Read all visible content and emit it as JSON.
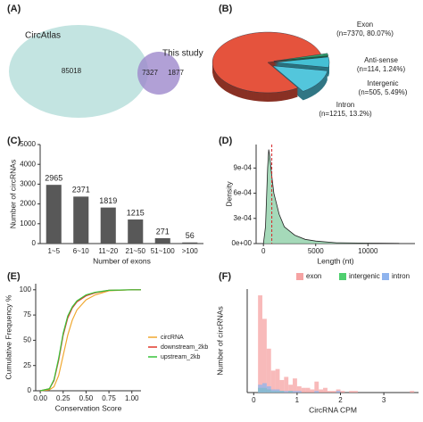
{
  "chart_data": [
    {
      "panel": "(A)",
      "type": "venn",
      "sets": [
        "CircAtlas",
        "This study"
      ],
      "values": [
        85018,
        7327,
        1877
      ],
      "colors": [
        "#c3e4e1",
        "#9d88cc"
      ]
    },
    {
      "panel": "(B)",
      "type": "pie",
      "categories": [
        "Exon",
        "Anti-sense",
        "Intergenic",
        "Intron"
      ],
      "values": [
        80.07,
        1.24,
        5.49,
        13.2
      ],
      "value_labels": [
        "(n=7370, 80.07%)",
        "(n=114, 1.24%)",
        "(n=505, 5.49%)",
        "(n=1215, 13.2%)"
      ],
      "colors": [
        "#e5533d",
        "#2f9e6c",
        "#45c0d4",
        "#53c6dc"
      ]
    },
    {
      "panel": "(C)",
      "type": "bar",
      "categories": [
        "1~5",
        "6~10",
        "11~20",
        "21~50",
        "51~100",
        ">100"
      ],
      "values": [
        2965,
        2371,
        1819,
        1215,
        271,
        56
      ],
      "color": "#585858",
      "xlabel": "Number of exons",
      "ylabel": "Number of circRNAs",
      "ylim": [
        0,
        5000
      ],
      "yticks": [
        0,
        1000,
        2000,
        3000,
        4000,
        5000
      ]
    },
    {
      "panel": "(D)",
      "type": "density",
      "xlabel": "Length (nt)",
      "ylabel": "Density",
      "x": [
        0,
        200,
        400,
        500,
        600,
        800,
        1000,
        1500,
        2000,
        3000,
        4000,
        5000,
        7000,
        10000,
        13000
      ],
      "values": [
        0,
        0.0002,
        0.0009,
        0.00112,
        0.00105,
        0.0008,
        0.0006,
        0.00035,
        0.0002,
        0.0001,
        5e-05,
        3e-05,
        1e-05,
        5e-06,
        2e-06
      ],
      "color": "#8fcfa8",
      "median": 800,
      "median_color": "#d62728",
      "xlim": [
        -700,
        14500
      ],
      "xticks": [
        0,
        5000,
        10000
      ],
      "ylim": [
        0,
        0.00118
      ],
      "yticks": [
        {
          "value": 0,
          "label": "0e+00"
        },
        {
          "value": 0.0003,
          "label": "3e-04"
        },
        {
          "value": 0.0006,
          "label": "6e-04"
        },
        {
          "value": 0.0009,
          "label": "9e-04"
        }
      ]
    },
    {
      "panel": "(E)",
      "type": "line",
      "xlabel": "Conservation Score",
      "ylabel": "Cumulative Frequency %",
      "x": [
        0,
        0.1,
        0.15,
        0.2,
        0.25,
        0.3,
        0.35,
        0.4,
        0.5,
        0.6,
        0.75,
        1,
        1.1
      ],
      "series": [
        {
          "name": "circRNA",
          "color": "#f0a830",
          "values": [
            0,
            1,
            4,
            15,
            35,
            55,
            70,
            80,
            90,
            95,
            99,
            100,
            100
          ]
        },
        {
          "name": "downstream_2kb",
          "color": "#e0392b",
          "values": [
            0,
            2,
            10,
            30,
            55,
            72,
            82,
            88,
            94,
            97,
            99.5,
            100,
            100
          ]
        },
        {
          "name": "upstream_2kb",
          "color": "#39c23a",
          "values": [
            0,
            2,
            11,
            32,
            57,
            74,
            83,
            89,
            95,
            97.5,
            99.5,
            100,
            100
          ]
        }
      ],
      "xlim": [
        -0.05,
        1.1
      ],
      "xticks": [
        {
          "value": 0,
          "label": "0.00"
        },
        0.25,
        {
          "value": 0.5,
          "label": "0.50"
        },
        0.75,
        {
          "value": 1,
          "label": "1.00"
        }
      ],
      "ylim": [
        0,
        106
      ],
      "yticks": [
        0,
        25,
        50,
        75,
        100
      ]
    },
    {
      "panel": "(F)",
      "type": "histogram",
      "xlabel": "CircRNA CPM",
      "ylabel": "Number of circRNAs",
      "bins": [
        0,
        0.1,
        0.2,
        0.3,
        0.4,
        0.5,
        0.6,
        0.7,
        0.8,
        0.9,
        1,
        1.1,
        1.2,
        1.3,
        1.4,
        1.5,
        1.6,
        1.7,
        1.8,
        1.9,
        2,
        2.1,
        2.2,
        2.3,
        2.4,
        2.5,
        2.6,
        2.7,
        2.8,
        2.9,
        3,
        3.1,
        3.2,
        3.3,
        3.4,
        3.5,
        3.6,
        3.7
      ],
      "series": [
        {
          "name": "exon",
          "color": "#f6a3a3",
          "values": [
            0,
            62,
            47,
            28,
            14,
            15,
            8,
            10,
            5,
            9,
            4,
            3,
            3,
            2,
            7,
            2,
            3,
            1,
            1,
            2,
            1,
            0,
            1,
            1,
            0,
            0,
            0,
            0,
            0,
            0,
            0,
            0,
            0,
            0,
            0,
            0,
            1
          ]
        },
        {
          "name": "intergenic",
          "color": "#4fcf6f",
          "values": [
            0,
            3,
            3,
            2,
            1,
            1,
            1,
            0,
            1,
            0,
            0,
            0,
            0,
            0,
            0,
            0,
            0,
            0,
            0,
            0,
            0,
            0,
            0,
            0,
            0,
            0,
            0,
            0,
            0,
            0,
            0,
            0,
            0,
            0,
            0,
            0,
            0
          ]
        },
        {
          "name": "intron",
          "color": "#8fb4ee",
          "values": [
            0,
            5,
            6,
            4,
            2,
            2,
            1,
            1,
            1,
            1,
            1,
            0,
            0,
            0,
            1,
            0,
            0,
            0,
            0,
            1,
            0,
            0,
            0,
            0,
            0,
            0,
            0,
            0,
            0,
            0,
            0,
            0,
            0,
            0,
            0,
            0,
            0
          ]
        }
      ],
      "xlim": [
        -0.15,
        3.8
      ],
      "xticks": [
        0,
        1,
        2,
        3
      ],
      "ylim": [
        0,
        66
      ]
    }
  ]
}
